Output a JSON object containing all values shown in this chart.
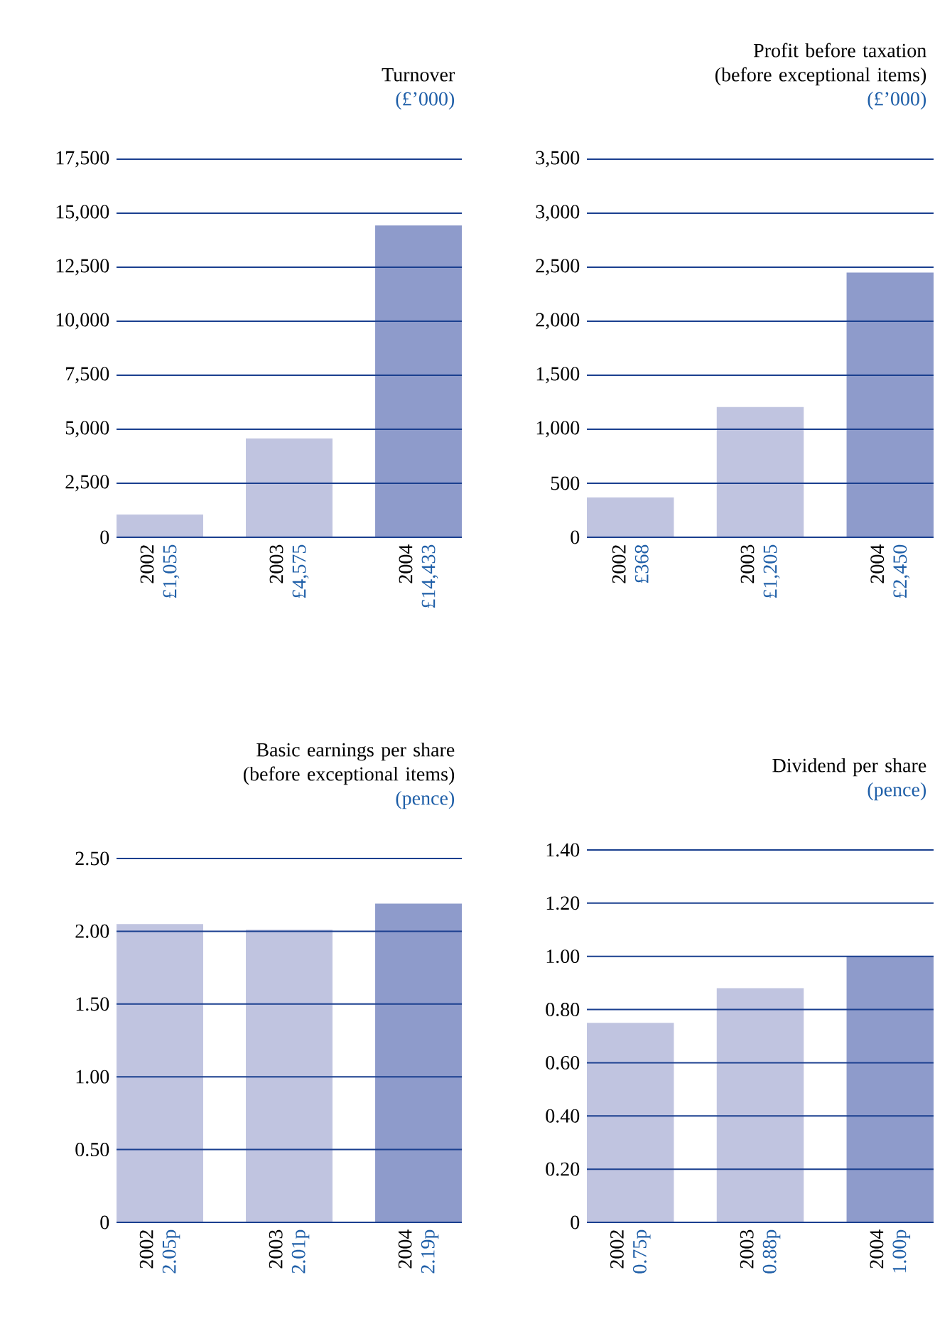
{
  "chart_data": [
    {
      "type": "bar",
      "title": "Turnover",
      "subtitle": "(£’000)",
      "categories": [
        "2002",
        "2003",
        "2004"
      ],
      "values": [
        1055,
        4575,
        14433
      ],
      "colors": [
        "#c0c4e0",
        "#c0c4e0",
        "#8e9bcb"
      ],
      "value_labels": [
        "£1,055",
        "£4,575",
        "£14,433"
      ],
      "ylim": [
        0,
        17500
      ],
      "grid": "y",
      "yticks": [
        {
          "value": 0,
          "label": "0"
        },
        {
          "value": 2500,
          "label": "2,500"
        },
        {
          "value": 5000,
          "label": "5,000"
        },
        {
          "value": 7500,
          "label": "7,500"
        },
        {
          "value": 10000,
          "label": "10,000"
        },
        {
          "value": 12500,
          "label": "12,500"
        },
        {
          "value": 15000,
          "label": "15,000"
        },
        {
          "value": 17500,
          "label": "17,500"
        }
      ]
    },
    {
      "type": "bar",
      "title": "Profit before taxation (before exceptional items)",
      "subtitle": "(£’000)",
      "categories": [
        "2002",
        "2003",
        "2004"
      ],
      "values": [
        368,
        1205,
        2450
      ],
      "colors": [
        "#c0c4e0",
        "#c0c4e0",
        "#8e9bcb"
      ],
      "value_labels": [
        "£368",
        "£1,205",
        "£2,450"
      ],
      "ylim": [
        0,
        3500
      ],
      "grid": "y",
      "yticks": [
        {
          "value": 0,
          "label": "0"
        },
        {
          "value": 500,
          "label": "500"
        },
        {
          "value": 1000,
          "label": "1,000"
        },
        {
          "value": 1500,
          "label": "1,500"
        },
        {
          "value": 2000,
          "label": "2,000"
        },
        {
          "value": 2500,
          "label": "2,500"
        },
        {
          "value": 3000,
          "label": "3,000"
        },
        {
          "value": 3500,
          "label": "3,500"
        }
      ]
    },
    {
      "type": "bar",
      "title": "Basic earnings per share (before exceptional items)",
      "subtitle": "(pence)",
      "categories": [
        "2002",
        "2003",
        "2004"
      ],
      "values": [
        2.05,
        2.01,
        2.19
      ],
      "colors": [
        "#c0c4e0",
        "#c0c4e0",
        "#8e9bcb"
      ],
      "value_labels": [
        "2.05p",
        "2.01p",
        "2.19p"
      ],
      "ylim": [
        0,
        2.5
      ],
      "grid": "y",
      "yticks": [
        {
          "value": 0,
          "label": "0"
        },
        {
          "value": 0.5,
          "label": "0.50"
        },
        {
          "value": 1,
          "label": "1.00"
        },
        {
          "value": 1.5,
          "label": "1.50"
        },
        {
          "value": 2,
          "label": "2.00"
        },
        {
          "value": 2.5,
          "label": "2.50"
        }
      ]
    },
    {
      "type": "bar",
      "title": "Dividend per share",
      "subtitle": "(pence)",
      "categories": [
        "2002",
        "2003",
        "2004"
      ],
      "values": [
        0.75,
        0.88,
        1.0
      ],
      "colors": [
        "#c0c4e0",
        "#c0c4e0",
        "#8e9bcb"
      ],
      "value_labels": [
        "0.75p",
        "0.88p",
        "1.00p"
      ],
      "ylim": [
        0,
        1.4
      ],
      "grid": "y",
      "yticks": [
        {
          "value": 0,
          "label": "0"
        },
        {
          "value": 0.2,
          "label": "0.20"
        },
        {
          "value": 0.4,
          "label": "0.40"
        },
        {
          "value": 0.6,
          "label": "0.60"
        },
        {
          "value": 0.8,
          "label": "0.80"
        },
        {
          "value": 1,
          "label": "1.00"
        },
        {
          "value": 1.2,
          "label": "1.20"
        },
        {
          "value": 1.4,
          "label": "1.40"
        }
      ]
    }
  ]
}
